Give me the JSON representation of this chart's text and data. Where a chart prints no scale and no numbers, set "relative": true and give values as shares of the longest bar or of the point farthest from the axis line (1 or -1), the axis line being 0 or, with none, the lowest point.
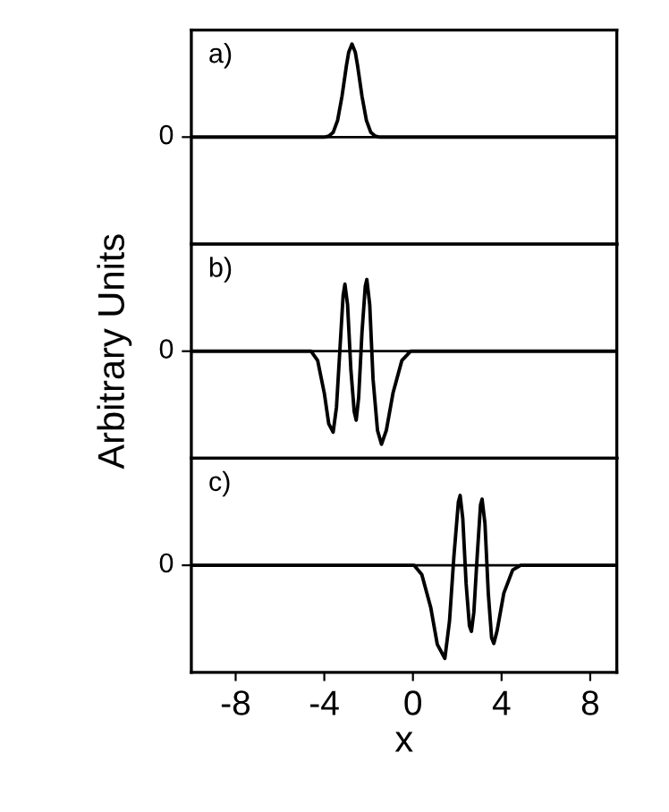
{
  "chart_data": [
    {
      "type": "line",
      "relative": true,
      "annotations": [
        "a)",
        "0"
      ],
      "xlim": [
        -10,
        9.2
      ],
      "xticks": [
        -8,
        -4,
        0,
        4,
        8
      ],
      "tick_labels": false,
      "grid": false,
      "legend": false,
      "series": [
        {
          "color": "#000000",
          "x": [
            -10,
            -4,
            -3.8,
            -3.6,
            -3.4,
            -3.2,
            -3.0,
            -2.9,
            -2.75,
            -2.6,
            -2.5,
            -2.3,
            -2.1,
            -1.9,
            -1.7,
            -1.5,
            9.2
          ],
          "values": [
            0,
            0,
            0.011,
            0.05,
            0.18,
            0.44,
            0.77,
            0.91,
            1,
            0.91,
            0.77,
            0.44,
            0.18,
            0.05,
            0.011,
            0,
            0
          ]
        }
      ]
    },
    {
      "type": "line",
      "relative": true,
      "annotations": [
        "b)",
        "0"
      ],
      "ylabel": "Arbitrary Units",
      "xlim": [
        -10,
        9.2
      ],
      "xticks": [
        -8,
        -4,
        0,
        4,
        8
      ],
      "tick_labels": false,
      "grid": false,
      "legend": false,
      "series": [
        {
          "color": "#000000",
          "x": [
            -10,
            -4.6,
            -4.3,
            -4.0,
            -3.8,
            -3.6,
            -3.45,
            -3.3,
            -3.15,
            -3.07,
            -2.95,
            -2.8,
            -2.65,
            -2.56,
            -2.45,
            -2.3,
            -2.15,
            -2.08,
            -1.95,
            -1.8,
            -1.6,
            -1.42,
            -1.2,
            -0.9,
            -0.5,
            -0.1,
            9.2
          ],
          "values": [
            0,
            0,
            -0.1,
            -0.45,
            -0.78,
            -0.87,
            -0.6,
            0.0,
            0.6,
            0.72,
            0.5,
            -0.2,
            -0.65,
            -0.74,
            -0.5,
            0.2,
            0.7,
            0.77,
            0.5,
            -0.3,
            -0.85,
            -1,
            -0.85,
            -0.45,
            -0.1,
            0,
            0
          ]
        }
      ]
    },
    {
      "type": "line",
      "relative": true,
      "annotations": [
        "c)",
        "0"
      ],
      "xlabel": "x",
      "xlim": [
        -10,
        9.2
      ],
      "xticks": [
        -8,
        -4,
        0,
        4,
        8
      ],
      "tick_labels": "x",
      "grid": false,
      "legend": false,
      "series": [
        {
          "color": "#000000",
          "x": [
            -10,
            0.05,
            0.4,
            0.8,
            1.1,
            1.44,
            1.65,
            1.85,
            2.05,
            2.13,
            2.25,
            2.4,
            2.55,
            2.64,
            2.75,
            2.9,
            3.05,
            3.12,
            3.25,
            3.4,
            3.55,
            3.65,
            3.8,
            4.1,
            4.5,
            4.86,
            9.2
          ],
          "values": [
            0,
            0,
            -0.1,
            -0.45,
            -0.85,
            -1,
            -0.6,
            0.1,
            0.68,
            0.75,
            0.5,
            -0.2,
            -0.65,
            -0.71,
            -0.5,
            0.1,
            0.65,
            0.71,
            0.45,
            -0.3,
            -0.78,
            -0.84,
            -0.7,
            -0.3,
            -0.05,
            0,
            0
          ]
        }
      ]
    }
  ]
}
